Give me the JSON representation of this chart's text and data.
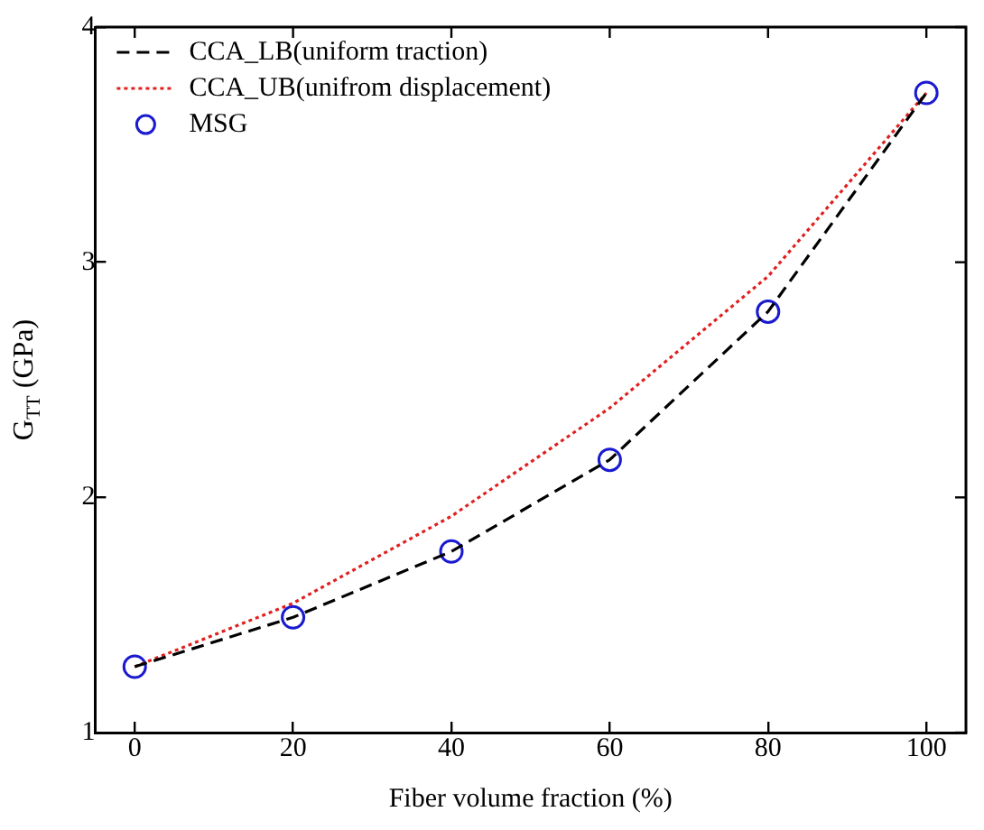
{
  "chart_data": {
    "type": "line",
    "xlabel": "Fiber volume fraction (%)",
    "ylabel": "G$_{TT}$ (GPa)",
    "x": [
      0,
      20,
      40,
      60,
      80,
      100
    ],
    "series": [
      {
        "name": "CCA_LB(uniform traction)",
        "color": "#000000",
        "line_style": "dashed",
        "marker": "none",
        "values": [
          1.28,
          1.49,
          1.77,
          2.16,
          2.79,
          3.72
        ]
      },
      {
        "name": "CCA_UB(unifrom displacement)",
        "color": "#e02020",
        "line_style": "dotted",
        "marker": "none",
        "values": [
          1.28,
          1.55,
          1.92,
          2.38,
          2.94,
          3.72
        ]
      },
      {
        "name": "MSG",
        "color": "#1a1ad0",
        "type": "scatter",
        "marker": "circle",
        "values": [
          1.28,
          1.49,
          1.77,
          2.16,
          2.79,
          3.72
        ]
      }
    ],
    "xlim": [
      -5,
      105
    ],
    "xticks": [
      0,
      20,
      40,
      60,
      80,
      100
    ],
    "ylim": [
      1,
      4
    ],
    "yticks": [
      1,
      2,
      3,
      4
    ],
    "grid": false,
    "legend": "top left"
  }
}
